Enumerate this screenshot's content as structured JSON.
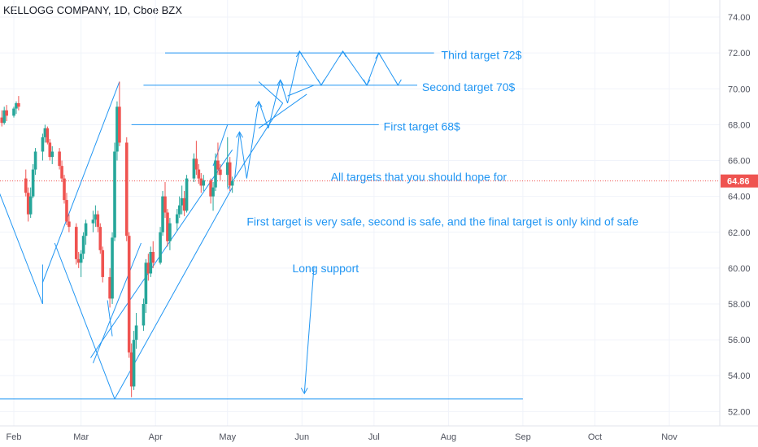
{
  "header": {
    "symbol_title": "KELLOGG COMPANY, 1D, Cboe BZX"
  },
  "colors": {
    "up": "#26a69a",
    "down": "#ef5350",
    "drawing": "#2196f3",
    "price_line": "#ef5350",
    "axis_text": "#50535e",
    "axis_line": "#e0e3eb"
  },
  "current_price": {
    "value": 64.86,
    "label": "64.86"
  },
  "chart_data": {
    "type": "candlestick",
    "title": "KELLOGG COMPANY, 1D, Cboe BZX",
    "ylim": [
      51.2,
      75.0
    ],
    "y_ticks": [
      {
        "value": 52,
        "label": "52.00"
      },
      {
        "value": 54,
        "label": "54.00"
      },
      {
        "value": 56,
        "label": "56.00"
      },
      {
        "value": 58,
        "label": "58.00"
      },
      {
        "value": 60,
        "label": "60.00"
      },
      {
        "value": 62,
        "label": "62.00"
      },
      {
        "value": 64,
        "label": "64.00"
      },
      {
        "value": 66,
        "label": "66.00"
      },
      {
        "value": 68,
        "label": "68.00"
      },
      {
        "value": 70,
        "label": "70.00"
      },
      {
        "value": 72,
        "label": "72.00"
      },
      {
        "value": 74,
        "label": "74.00"
      }
    ],
    "x_domain_days": [
      -3,
      291
    ],
    "x_ticks": [
      {
        "day": 0,
        "label": "Feb"
      },
      {
        "day": 28,
        "label": "Mar"
      },
      {
        "day": 59,
        "label": "Apr"
      },
      {
        "day": 89,
        "label": "May"
      },
      {
        "day": 120,
        "label": "Jun"
      },
      {
        "day": 150,
        "label": "Jul"
      },
      {
        "day": 181,
        "label": "Aug"
      },
      {
        "day": 212,
        "label": "Sep"
      },
      {
        "day": 242,
        "label": "Oct"
      },
      {
        "day": 273,
        "label": "Nov"
      }
    ],
    "candles": [
      [
        -6,
        68.9,
        69.2,
        68.0,
        68.4
      ],
      [
        -5,
        68.4,
        68.8,
        67.9,
        68.1
      ],
      [
        -4,
        68.1,
        69.0,
        68.0,
        68.8
      ],
      [
        -3,
        68.8,
        69.1,
        68.2,
        68.5
      ],
      [
        0,
        68.5,
        69.0,
        68.4,
        68.9
      ],
      [
        1,
        68.9,
        69.3,
        68.6,
        69.2
      ],
      [
        2,
        69.2,
        69.6,
        68.8,
        69.0
      ],
      [
        5,
        65.0,
        65.5,
        64.0,
        64.2
      ],
      [
        6,
        64.2,
        64.5,
        62.6,
        63.0
      ],
      [
        7,
        63.0,
        64.5,
        62.8,
        64.0
      ],
      [
        8,
        64.0,
        65.8,
        63.9,
        65.5
      ],
      [
        9,
        65.5,
        66.7,
        65.2,
        66.5
      ],
      [
        12,
        66.5,
        67.5,
        66.0,
        67.3
      ],
      [
        13,
        67.3,
        68.0,
        67.0,
        67.8
      ],
      [
        14,
        67.8,
        67.9,
        66.9,
        67.0
      ],
      [
        15,
        67.0,
        67.2,
        66.0,
        66.2
      ],
      [
        16,
        66.2,
        66.8,
        65.8,
        66.5
      ],
      [
        19,
        66.5,
        66.7,
        65.5,
        65.7
      ],
      [
        20,
        65.7,
        66.0,
        64.8,
        65.0
      ],
      [
        21,
        65.0,
        65.2,
        63.6,
        63.8
      ],
      [
        22,
        63.8,
        64.2,
        62.4,
        62.6
      ],
      [
        23,
        62.6,
        63.0,
        62.0,
        62.3
      ],
      [
        26,
        62.3,
        62.5,
        60.2,
        60.5
      ],
      [
        27,
        60.5,
        60.9,
        60.0,
        60.3
      ],
      [
        28,
        60.3,
        61.0,
        59.5,
        60.8
      ],
      [
        29,
        60.8,
        62.0,
        60.5,
        61.8
      ],
      [
        30,
        61.8,
        62.7,
        61.3,
        62.5
      ],
      [
        33,
        62.5,
        63.2,
        62.0,
        62.7
      ],
      [
        34,
        62.7,
        63.5,
        62.3,
        63.0
      ],
      [
        35,
        63.0,
        63.2,
        62.0,
        62.3
      ],
      [
        36,
        62.3,
        62.5,
        60.8,
        61.0
      ],
      [
        37,
        61.0,
        61.2,
        59.2,
        59.5
      ],
      [
        40,
        59.5,
        60.0,
        57.8,
        58.3
      ],
      [
        41,
        58.3,
        62.0,
        58.0,
        61.7
      ],
      [
        42,
        61.7,
        67.0,
        61.5,
        66.5
      ],
      [
        43,
        66.5,
        69.3,
        66.0,
        69.0
      ],
      [
        44,
        69.0,
        70.4,
        66.8,
        67.0
      ],
      [
        47,
        67.0,
        67.3,
        61.5,
        61.8
      ],
      [
        48,
        61.8,
        62.0,
        55.0,
        55.3
      ],
      [
        49,
        55.3,
        55.8,
        52.8,
        53.4
      ],
      [
        50,
        53.4,
        56.5,
        53.2,
        56.0
      ],
      [
        51,
        56.0,
        57.5,
        55.5,
        56.8
      ],
      [
        54,
        56.8,
        58.3,
        56.5,
        58.0
      ],
      [
        55,
        58.0,
        60.5,
        57.5,
        60.3
      ],
      [
        56,
        60.3,
        60.8,
        59.3,
        59.7
      ],
      [
        57,
        59.7,
        61.2,
        59.5,
        60.9
      ],
      [
        58,
        60.9,
        61.5,
        60.0,
        60.3
      ],
      [
        61,
        60.3,
        62.3,
        60.2,
        62.0
      ],
      [
        62,
        62.0,
        64.3,
        61.8,
        64.0
      ],
      [
        63,
        64.0,
        64.8,
        62.8,
        63.1
      ],
      [
        64,
        63.1,
        63.3,
        61.2,
        61.5
      ],
      [
        65,
        61.5,
        62.8,
        61.0,
        62.5
      ],
      [
        68,
        62.5,
        63.3,
        62.1,
        63.0
      ],
      [
        69,
        63.0,
        64.0,
        62.8,
        63.5
      ],
      [
        70,
        63.5,
        64.6,
        63.0,
        63.9
      ],
      [
        71,
        63.9,
        64.3,
        62.9,
        63.2
      ],
      [
        72,
        63.2,
        65.2,
        63.1,
        65.0
      ],
      [
        75,
        65.0,
        66.4,
        64.8,
        66.1
      ],
      [
        76,
        66.1,
        67.1,
        65.2,
        65.5
      ],
      [
        77,
        65.5,
        65.8,
        64.7,
        65.0
      ],
      [
        78,
        65.0,
        65.3,
        64.2,
        64.6
      ],
      [
        79,
        64.6,
        65.2,
        64.3,
        64.9
      ],
      [
        82,
        64.9,
        65.0,
        63.6,
        64.0
      ],
      [
        83,
        64.0,
        64.8,
        63.2,
        64.5
      ],
      [
        84,
        64.5,
        66.4,
        64.3,
        66.0
      ],
      [
        85,
        66.0,
        67.0,
        65.2,
        65.5
      ],
      [
        86,
        65.5,
        65.8,
        64.9,
        65.2
      ],
      [
        89,
        65.2,
        67.3,
        64.5,
        65.9
      ],
      [
        90,
        65.9,
        66.2,
        64.3,
        64.6
      ],
      [
        91,
        64.6,
        65.1,
        64.2,
        64.86
      ]
    ]
  },
  "drawings": {
    "lines": [
      [
        -6,
        64.2,
        12,
        58.0
      ],
      [
        12,
        58.0,
        12,
        60.2
      ],
      [
        39,
        58.2,
        41,
        56.2
      ],
      [
        -6,
        52.7,
        212,
        52.7
      ],
      [
        12,
        59.2,
        44,
        70.4
      ],
      [
        42,
        52.7,
        17,
        61.4
      ],
      [
        42,
        52.7,
        91,
        64.5
      ],
      [
        32,
        55.0,
        91,
        66.6
      ],
      [
        83,
        65.7,
        89,
        68.0
      ],
      [
        89,
        64.4,
        112,
        69.2
      ],
      [
        112,
        69.2,
        102,
        70.4
      ],
      [
        33,
        54.7,
        53,
        61.4
      ],
      [
        125,
        70.2,
        114,
        69.6
      ],
      [
        122,
        69.7,
        102,
        67.8
      ],
      [
        92,
        65.0,
        94,
        67.6
      ],
      [
        94,
        67.6,
        97,
        65.0
      ],
      [
        97,
        65.0,
        102,
        69.3
      ],
      [
        102,
        69.3,
        106,
        67.8
      ],
      [
        106,
        67.8,
        111,
        70.5
      ],
      [
        111,
        70.5,
        114,
        69.2
      ],
      [
        114,
        69.2,
        119,
        72.1
      ],
      [
        119,
        72.1,
        128,
        70.2
      ],
      [
        128,
        70.2,
        137,
        72.1
      ],
      [
        137,
        72.1,
        147,
        70.2
      ],
      [
        147,
        70.2,
        152,
        72.0
      ],
      [
        152,
        72.0,
        160,
        70.2
      ],
      [
        125,
        60.1,
        121,
        53.0
      ]
    ],
    "arrowheads": [
      [
        94,
        67.6,
        "up"
      ],
      [
        102,
        69.3,
        "up"
      ],
      [
        111,
        70.5,
        "up"
      ],
      [
        119,
        72.1,
        "up"
      ],
      [
        128,
        70.2,
        "down"
      ],
      [
        137,
        72.1,
        "up"
      ],
      [
        147,
        70.2,
        "down"
      ],
      [
        152,
        72.0,
        "up"
      ],
      [
        160,
        70.2,
        "down"
      ],
      [
        121,
        53.0,
        "down"
      ]
    ],
    "target_lines": [
      {
        "y": 72.0,
        "x1": 63,
        "x2": 175
      },
      {
        "y": 70.2,
        "x1": 54,
        "x2": 168
      },
      {
        "y": 68.0,
        "x1": 49,
        "x2": 152
      }
    ]
  },
  "annotations": [
    {
      "id": "third-target",
      "text": "Third target 72$",
      "day": 178,
      "price": 71.9
    },
    {
      "id": "second-target",
      "text": "Second target 70$",
      "day": 170,
      "price": 70.1
    },
    {
      "id": "first-target",
      "text": "First target 68$",
      "day": 154,
      "price": 67.9
    },
    {
      "id": "all-targets",
      "text": "All targets that you should hope for",
      "day": 132,
      "price": 65.1
    },
    {
      "id": "safety-note",
      "text": "First target is very safe, second is safe, and the final target is only kind of safe",
      "day": 97,
      "price": 62.6
    },
    {
      "id": "long-support",
      "text": "Long support",
      "day": 116,
      "price": 60.0
    }
  ]
}
